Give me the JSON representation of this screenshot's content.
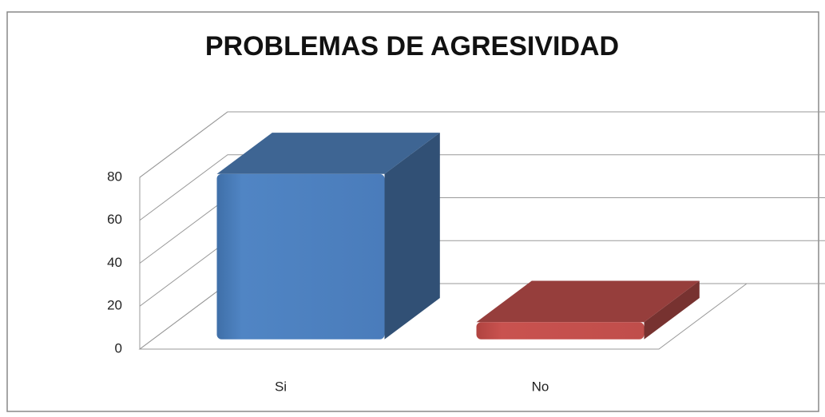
{
  "chart_data": {
    "type": "bar3d",
    "title": "PROBLEMAS DE AGRESIVIDAD",
    "categories": [
      "Si",
      "No"
    ],
    "values": [
      77,
      8
    ],
    "colors": [
      "#4f81bd",
      "#c0504d"
    ],
    "ylim": [
      0,
      80
    ],
    "yticks": [
      0,
      20,
      40,
      60,
      80
    ],
    "grid": true
  }
}
